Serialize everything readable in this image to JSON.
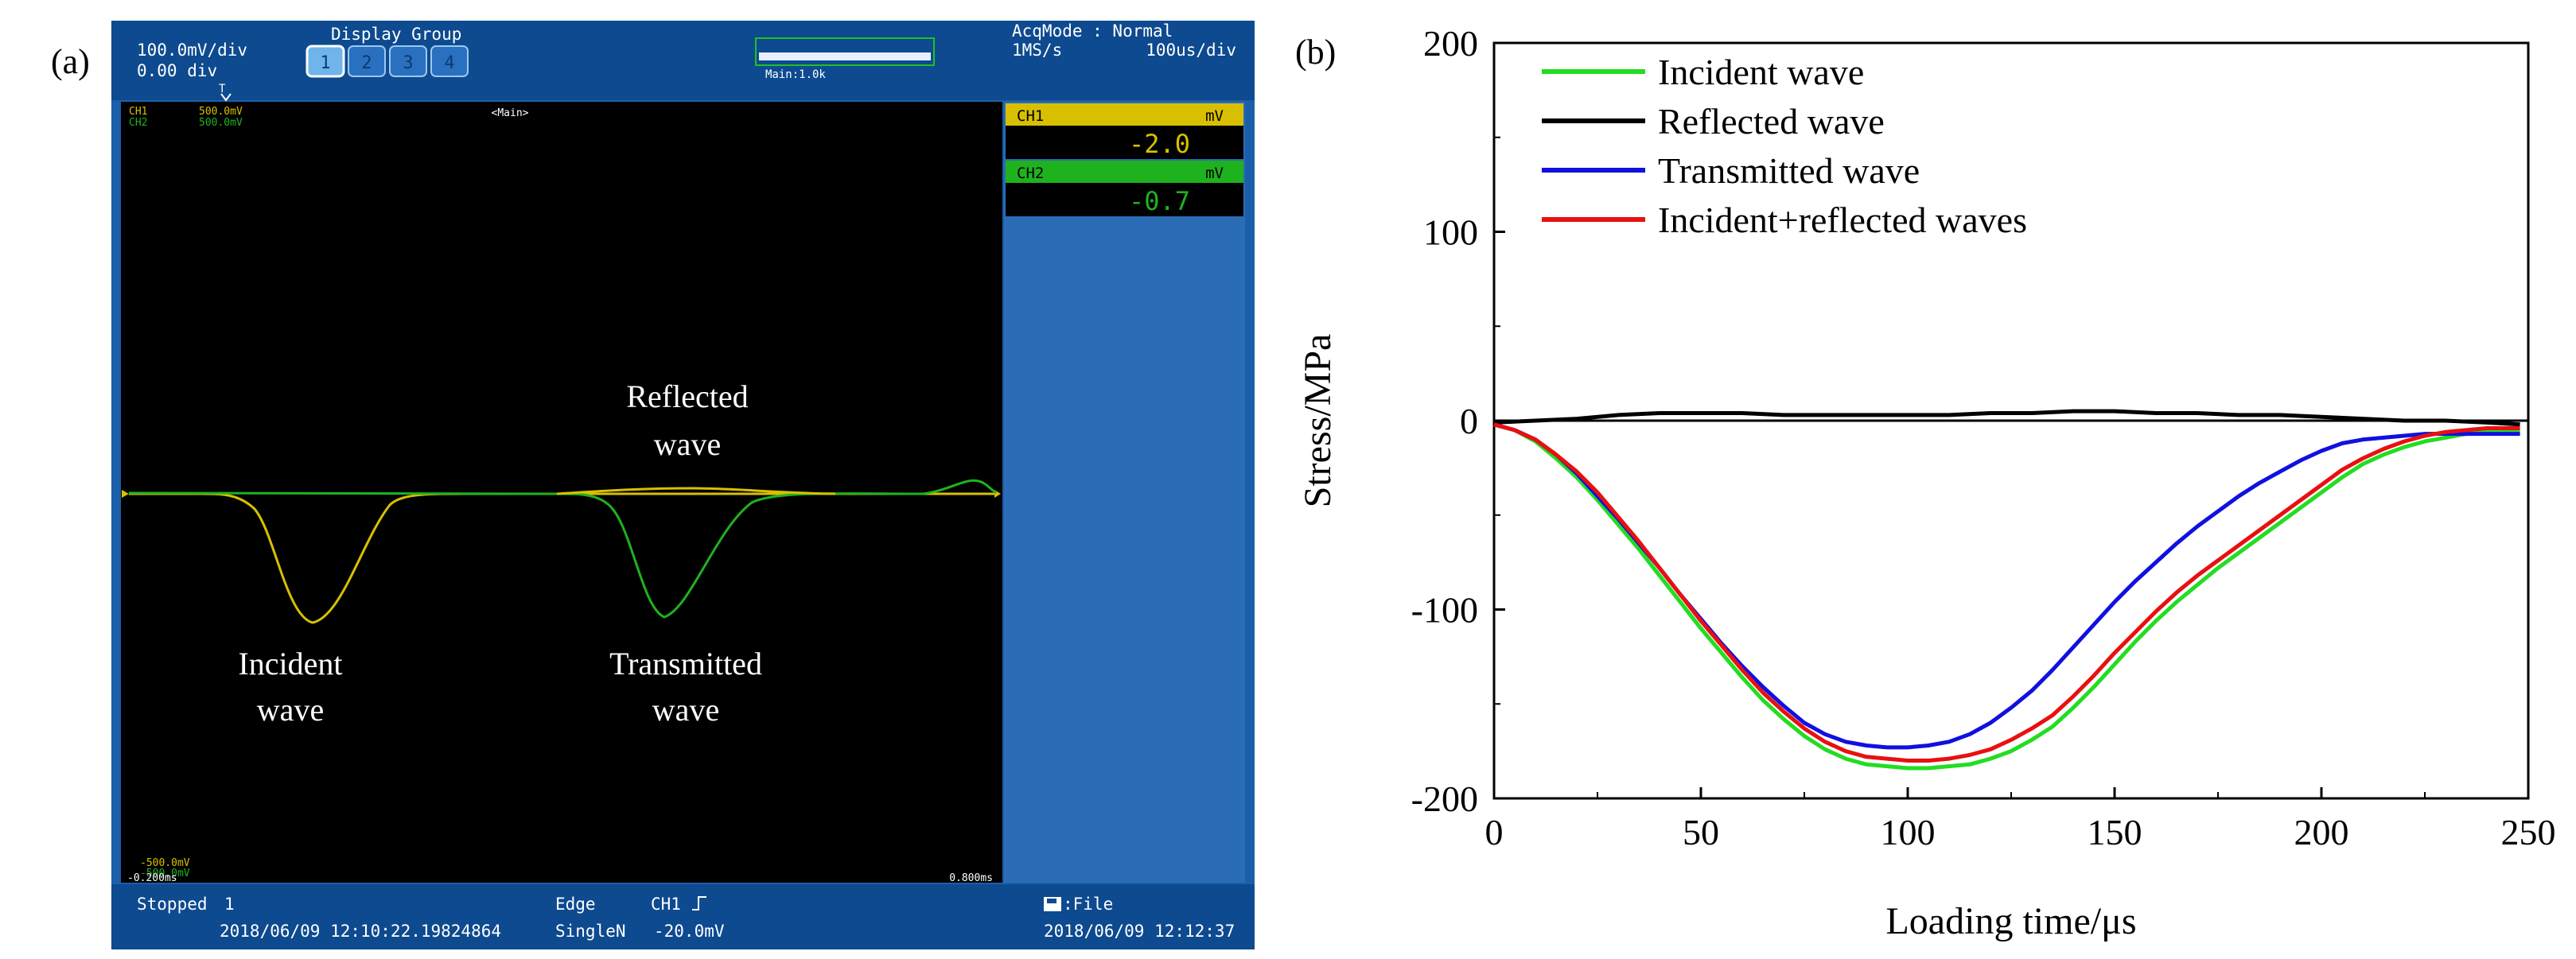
{
  "panel_a": {
    "label": "(a)",
    "scope": {
      "volt_div": "100.0mV/div",
      "offset": "0.00 div",
      "display_group_title": "Display Group",
      "display_group_buttons": [
        "1",
        "2",
        "3",
        "4"
      ],
      "main_zoom": "Main:1.0k",
      "acq_mode": "AcqMode : Normal",
      "sample_rate": "1MS/s",
      "time_div": "100us/div",
      "trigger_marker": "T",
      "ch1_tag": "CH1",
      "ch1_scale": "500.0mV",
      "ch2_tag": "CH2",
      "ch2_scale": "500.0mV",
      "main_label": "<Main>",
      "bottom_scale_1": "-500.0mV",
      "bottom_scale_2": "-500.0mV",
      "time_start": "-0.200ms",
      "time_end": "0.800ms",
      "readouts": [
        {
          "channel": "CH1",
          "unit": "mV",
          "value": "-2.0",
          "color": "#d8c000"
        },
        {
          "channel": "CH2",
          "unit": "mV",
          "value": "-0.7",
          "color": "#1fb21f"
        }
      ],
      "status_bar": {
        "state": "Stopped",
        "record": "1",
        "timestamp_left": "2018/06/09 12:10:22.19824864",
        "trigger_type": "Edge",
        "trigger_mode": "SingleN",
        "trigger_channel": "CH1",
        "trigger_edge_icon": "rising-edge-icon",
        "trigger_level": "-20.0mV",
        "file_label": ":File",
        "file_icon": "disk-icon",
        "timestamp_right": "2018/06/09 12:12:37"
      },
      "annotations": {
        "reflected": [
          "Reflected",
          "wave"
        ],
        "incident": [
          "Incident",
          "wave"
        ],
        "transmitted": [
          "Transmitted",
          "wave"
        ]
      },
      "colors": {
        "ch1": "#d8c000",
        "ch2": "#1fb21f",
        "frame": "#1a5fa8",
        "side_panel": "#2b6cb6"
      }
    }
  },
  "panel_b": {
    "label": "(b)"
  },
  "chart_data": {
    "type": "line",
    "title": "",
    "xlabel": "Loading time/μs",
    "ylabel": "Stress/MPa",
    "xlim": [
      0,
      250
    ],
    "ylim": [
      -200,
      200
    ],
    "xticks": [
      0,
      50,
      100,
      150,
      200,
      250
    ],
    "yticks": [
      -200,
      -100,
      0,
      100,
      200
    ],
    "grid": false,
    "legend_position": "top-left",
    "series": [
      {
        "name": "Incident wave",
        "color": "#22dd22",
        "x": [
          0,
          5,
          10,
          15,
          20,
          25,
          30,
          35,
          40,
          45,
          50,
          55,
          60,
          65,
          70,
          75,
          80,
          85,
          90,
          95,
          100,
          105,
          110,
          115,
          120,
          125,
          130,
          135,
          140,
          145,
          150,
          155,
          160,
          165,
          170,
          175,
          180,
          185,
          190,
          195,
          200,
          205,
          210,
          215,
          220,
          225,
          230,
          235,
          240,
          245,
          248
        ],
        "y": [
          -2,
          -5,
          -11,
          -20,
          -30,
          -42,
          -55,
          -68,
          -82,
          -96,
          -110,
          -123,
          -136,
          -148,
          -158,
          -167,
          -174,
          -179,
          -182,
          -183,
          -184,
          -184,
          -183,
          -182,
          -179,
          -175,
          -169,
          -162,
          -152,
          -141,
          -129,
          -117,
          -106,
          -96,
          -87,
          -78,
          -70,
          -62,
          -54,
          -46,
          -38,
          -30,
          -23,
          -18,
          -14,
          -11,
          -9,
          -7,
          -6,
          -5,
          -5
        ]
      },
      {
        "name": "Reflected wave",
        "color": "#000000",
        "x": [
          0,
          10,
          20,
          30,
          40,
          50,
          60,
          70,
          80,
          90,
          100,
          110,
          120,
          130,
          140,
          150,
          160,
          170,
          180,
          190,
          200,
          210,
          220,
          230,
          240,
          248
        ],
        "y": [
          -1,
          0,
          1,
          3,
          4,
          4,
          4,
          3,
          3,
          3,
          3,
          3,
          4,
          4,
          5,
          5,
          4,
          4,
          3,
          3,
          2,
          1,
          0,
          0,
          -1,
          -2
        ]
      },
      {
        "name": "Transmitted wave",
        "color": "#1010e0",
        "x": [
          0,
          5,
          10,
          15,
          20,
          25,
          30,
          35,
          40,
          45,
          50,
          55,
          60,
          65,
          70,
          75,
          80,
          85,
          90,
          95,
          100,
          105,
          110,
          115,
          120,
          125,
          130,
          135,
          140,
          145,
          150,
          155,
          160,
          165,
          170,
          175,
          180,
          185,
          190,
          195,
          200,
          205,
          210,
          215,
          220,
          225,
          230,
          235,
          240,
          245,
          248
        ],
        "y": [
          -2,
          -5,
          -10,
          -18,
          -28,
          -40,
          -52,
          -65,
          -78,
          -92,
          -105,
          -118,
          -130,
          -141,
          -151,
          -160,
          -166,
          -170,
          -172,
          -173,
          -173,
          -172,
          -170,
          -166,
          -160,
          -152,
          -143,
          -132,
          -120,
          -108,
          -96,
          -85,
          -75,
          -65,
          -56,
          -48,
          -40,
          -33,
          -27,
          -21,
          -16,
          -12,
          -10,
          -9,
          -8,
          -7,
          -7,
          -7,
          -7,
          -7,
          -7
        ]
      },
      {
        "name": "Incident+reflected waves",
        "color": "#e81010",
        "x": [
          0,
          5,
          10,
          15,
          20,
          25,
          30,
          35,
          40,
          45,
          50,
          55,
          60,
          65,
          70,
          75,
          80,
          85,
          90,
          95,
          100,
          105,
          110,
          115,
          120,
          125,
          130,
          135,
          140,
          145,
          150,
          155,
          160,
          165,
          170,
          175,
          180,
          185,
          190,
          195,
          200,
          205,
          210,
          215,
          220,
          225,
          230,
          235,
          240,
          245,
          248
        ],
        "y": [
          -2,
          -5,
          -10,
          -18,
          -27,
          -38,
          -51,
          -64,
          -78,
          -92,
          -106,
          -119,
          -132,
          -144,
          -154,
          -163,
          -170,
          -175,
          -178,
          -179,
          -180,
          -180,
          -179,
          -177,
          -174,
          -169,
          -163,
          -156,
          -146,
          -135,
          -123,
          -112,
          -101,
          -91,
          -82,
          -74,
          -66,
          -58,
          -50,
          -42,
          -34,
          -26,
          -20,
          -15,
          -11,
          -8,
          -6,
          -5,
          -4,
          -4,
          -4
        ]
      }
    ]
  }
}
